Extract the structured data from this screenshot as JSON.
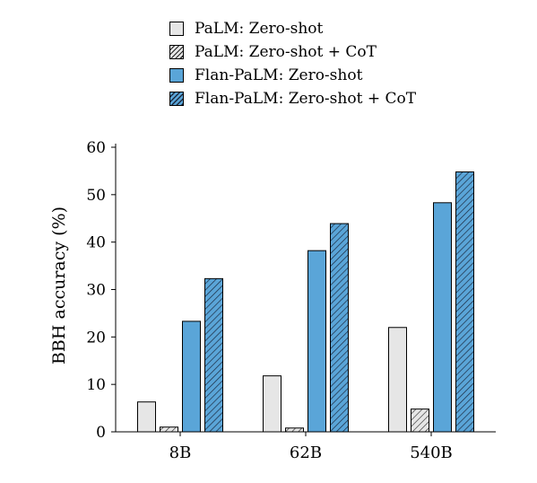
{
  "chart_data": {
    "type": "bar",
    "categories": [
      "8B",
      "62B",
      "540B"
    ],
    "series": [
      {
        "name": "PaLM: Zero-shot",
        "values": [
          6.3,
          11.8,
          22.0
        ],
        "color": "#e6e6e6",
        "hatch": false
      },
      {
        "name": "PaLM: Zero-shot + CoT",
        "values": [
          1.0,
          0.8,
          4.8
        ],
        "color": "#e6e6e6",
        "hatch": true
      },
      {
        "name": "Flan-PaLM: Zero-shot",
        "values": [
          23.3,
          38.2,
          48.3
        ],
        "color": "#5aa5d8",
        "hatch": false
      },
      {
        "name": "Flan-PaLM: Zero-shot + CoT",
        "values": [
          32.3,
          43.9,
          54.8
        ],
        "color": "#5aa5d8",
        "hatch": true
      }
    ],
    "ylabel": "BBH accuracy (%)",
    "ylim": [
      0,
      60
    ],
    "yticks": [
      0,
      10,
      20,
      30,
      40,
      50,
      60
    ],
    "grid": false,
    "legend_position": "top"
  }
}
